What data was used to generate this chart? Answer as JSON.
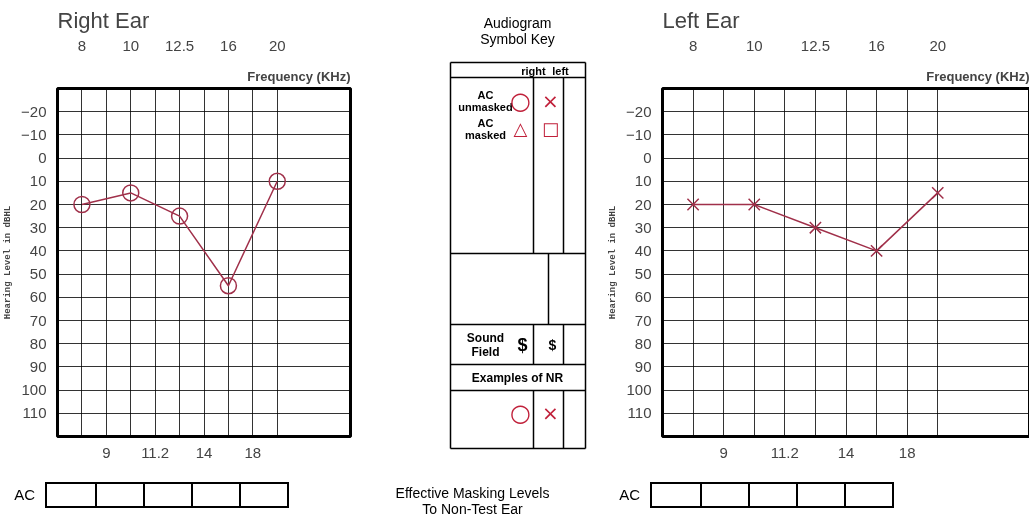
{
  "chart_data": [
    {
      "type": "line",
      "title": "Right Ear",
      "x2label": "Frequency (KHz)",
      "ylabel": "Hearing Level in dBHL",
      "categories": [
        "8",
        "9",
        "10",
        "11.2",
        "12.5",
        "14",
        "16",
        "18",
        "20"
      ],
      "series": [
        {
          "color": "#a0304a",
          "values": [
            20,
            null,
            15,
            null,
            25,
            null,
            55,
            null,
            10
          ]
        }
      ],
      "ylim": [
        120,
        -30
      ],
      "yticks": [
        -20,
        -10,
        0,
        10,
        20,
        30,
        40,
        50,
        60,
        70,
        80,
        90,
        100,
        110
      ],
      "grid": true,
      "marker": "circle",
      "line_style": "solid",
      "annotations": [
        "AC"
      ]
    },
    {
      "type": "other",
      "title": "Audiogram Symbol Key",
      "annotations": [
        "right",
        "left",
        "AC unmasked",
        "AC masked",
        "Sound Field",
        "$",
        "$",
        "Examples of NR",
        "Effective Masking Levels To Non-Test Ear",
        "○",
        "×",
        "△",
        "□",
        "○",
        "×"
      ]
    },
    {
      "type": "line",
      "title": "Left Ear",
      "x2label": "Frequency (KHz)",
      "ylabel": "Hearing Level in dBHL",
      "categories": [
        "8",
        "9",
        "10",
        "11.2",
        "12.5",
        "14",
        "16",
        "18",
        "20"
      ],
      "series": [
        {
          "color": "#a0304a",
          "values": [
            20,
            null,
            20,
            null,
            30,
            null,
            40,
            null,
            15
          ]
        }
      ],
      "ylim": [
        120,
        -30
      ],
      "yticks": [
        -20,
        -10,
        0,
        10,
        20,
        30,
        40,
        50,
        60,
        70,
        80,
        90,
        100,
        110
      ],
      "grid": true,
      "marker": "cross",
      "line_style": "solid",
      "annotations": [
        "AC"
      ]
    }
  ]
}
